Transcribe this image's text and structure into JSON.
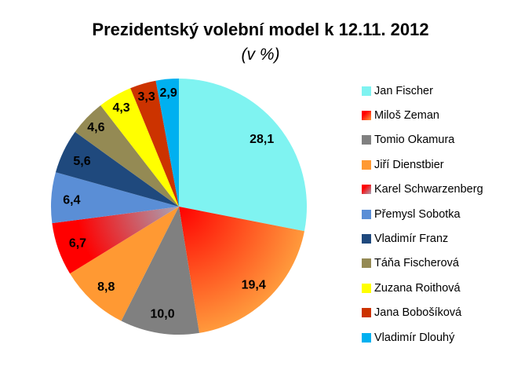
{
  "chart_data": {
    "type": "pie",
    "title": "Prezidentský volební model k  12.11. 2012",
    "subtitle": "(v %)",
    "legend_position": "right",
    "start": "12 o'clock, clockwise",
    "slices": [
      {
        "label": "Jan Fischer",
        "value": 28.1,
        "display": "28,1",
        "color": "#7FF3F1"
      },
      {
        "label": "Miloš Zeman",
        "value": 19.4,
        "display": "19,4",
        "color": "#FF0000",
        "color2": "#FF9A3C"
      },
      {
        "label": "Tomio Okamura",
        "value": 10.0,
        "display": "10,0",
        "color": "#808080"
      },
      {
        "label": "Jiří Dienstbier",
        "value": 8.8,
        "display": "8,8",
        "color": "#FF9933"
      },
      {
        "label": "Karel Schwarzenberg",
        "value": 6.7,
        "display": "6,7",
        "color": "#FF0000",
        "color2": "#A6A6B8"
      },
      {
        "label": "Přemysl Sobotka",
        "value": 6.4,
        "display": "6,4",
        "color": "#5A8ED6"
      },
      {
        "label": "Vladimír Franz",
        "value": 5.6,
        "display": "5,6",
        "color": "#1F497D"
      },
      {
        "label": "Táňa Fischerová",
        "value": 4.6,
        "display": "4,6",
        "color": "#948A54"
      },
      {
        "label": "Zuzana Roithová",
        "value": 4.3,
        "display": "4,3",
        "color": "#FFFF00"
      },
      {
        "label": "Jana Bobošíková",
        "value": 3.3,
        "display": "3,3",
        "color": "#CC3300"
      },
      {
        "label": "Vladimír Dlouhý",
        "value": 2.9,
        "display": "2,9",
        "color": "#00B0F0"
      }
    ]
  }
}
